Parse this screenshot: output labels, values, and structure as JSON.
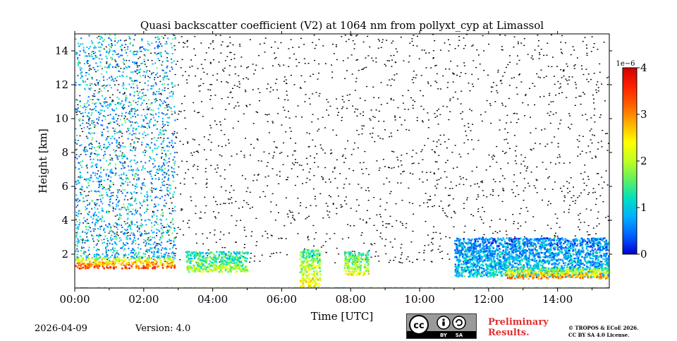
{
  "chart_data": {
    "type": "heatmap",
    "title": "Quasi backscatter coefficient (V2) at 1064 nm from pollyxt_cyp at Limassol",
    "xlabel": "Time [UTC]",
    "ylabel": "Height [km]",
    "xlim_hours": [
      0,
      15.5
    ],
    "ylim_km": [
      0,
      15
    ],
    "x_ticks": [
      {
        "value": 0,
        "label": "00:00"
      },
      {
        "value": 2,
        "label": "02:00"
      },
      {
        "value": 4,
        "label": "04:00"
      },
      {
        "value": 6,
        "label": "06:00"
      },
      {
        "value": 8,
        "label": "08:00"
      },
      {
        "value": 10,
        "label": "10:00"
      },
      {
        "value": 12,
        "label": "12:00"
      },
      {
        "value": 14,
        "label": "14:00"
      }
    ],
    "y_ticks": [
      {
        "value": 2,
        "label": "2"
      },
      {
        "value": 4,
        "label": "4"
      },
      {
        "value": 6,
        "label": "6"
      },
      {
        "value": 8,
        "label": "8"
      },
      {
        "value": 10,
        "label": "10"
      },
      {
        "value": 12,
        "label": "12"
      },
      {
        "value": 14,
        "label": "14"
      }
    ],
    "colorbar": {
      "min": 0,
      "max": 4,
      "scale_label": "1e−6",
      "ticks": [
        {
          "value": 0,
          "label": "0"
        },
        {
          "value": 1,
          "label": "1"
        },
        {
          "value": 2,
          "label": "2"
        },
        {
          "value": 3,
          "label": "3"
        },
        {
          "value": 4,
          "label": "4"
        }
      ],
      "colors": [
        "#0000d0",
        "#0060ff",
        "#00b0ff",
        "#00e0c0",
        "#60f060",
        "#c0ff20",
        "#ffff00",
        "#ffb000",
        "#ff6000",
        "#ff2000",
        "#d00000"
      ]
    },
    "features": [
      {
        "name": "aerosol layer",
        "t_start": 0.0,
        "t_end": 2.9,
        "h_bottom": 1.2,
        "h_top": 1.8,
        "value": 3.5
      },
      {
        "name": "elevated layer",
        "t_start": 3.2,
        "t_end": 5.0,
        "h_bottom": 1.0,
        "h_top": 2.2,
        "value": 2.0
      },
      {
        "name": "plume",
        "t_start": 6.5,
        "t_end": 7.1,
        "h_bottom": 0.1,
        "h_top": 2.3,
        "value": 2.5
      },
      {
        "name": "plume",
        "t_start": 7.8,
        "t_end": 8.5,
        "h_bottom": 0.8,
        "h_top": 2.2,
        "value": 2.3
      },
      {
        "name": "boundary layer",
        "t_start": 11.0,
        "t_end": 15.5,
        "h_bottom": 0.7,
        "h_top": 3.0,
        "value": 1.0
      },
      {
        "name": "boundary layer top",
        "t_start": 12.5,
        "t_end": 15.5,
        "h_bottom": 0.6,
        "h_top": 1.2,
        "value": 3.2
      }
    ]
  },
  "footer": {
    "date": "2026-04-09",
    "version": "Version: 4.0",
    "preliminary_line1": "Preliminary",
    "preliminary_line2": "Results.",
    "copyright_line1": "© TROPOS & ECoE 2026.",
    "copyright_line2": "CC BY SA 4.0 License.",
    "cc_badge": {
      "by": "BY",
      "sa": "SA"
    }
  }
}
